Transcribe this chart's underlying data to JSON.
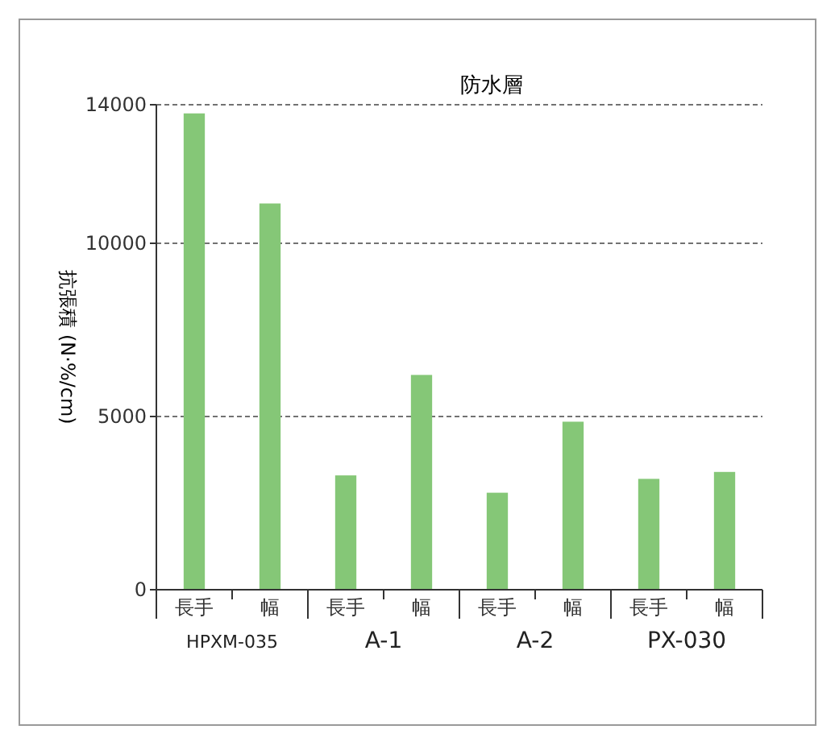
{
  "chart_data": {
    "type": "bar",
    "title": "防水層",
    "ylabel": "抗張積 (N·%/cm)",
    "categories": [
      "長手",
      "幅",
      "長手",
      "幅",
      "長手",
      "幅",
      "長手",
      "幅"
    ],
    "values": [
      13750,
      11150,
      3300,
      6200,
      2800,
      4850,
      3200,
      3400
    ],
    "color": "#85c777",
    "ylim": [
      0,
      14000
    ],
    "yticks": [
      0,
      5000,
      10000,
      14000
    ],
    "grid": "y",
    "annotations": [
      "HPXM-035",
      "A-1",
      "A-2",
      "PX-030"
    ]
  }
}
